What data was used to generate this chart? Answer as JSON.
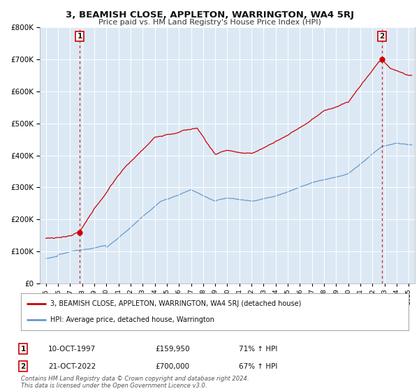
{
  "title": "3, BEAMISH CLOSE, APPLETON, WARRINGTON, WA4 5RJ",
  "subtitle": "Price paid vs. HM Land Registry's House Price Index (HPI)",
  "legend_line1": "3, BEAMISH CLOSE, APPLETON, WARRINGTON, WA4 5RJ (detached house)",
  "legend_line2": "HPI: Average price, detached house, Warrington",
  "annotation1_date": "10-OCT-1997",
  "annotation1_price": "£159,950",
  "annotation1_hpi": "71% ↑ HPI",
  "annotation2_date": "21-OCT-2022",
  "annotation2_price": "£700,000",
  "annotation2_hpi": "67% ↑ HPI",
  "footer": "Contains HM Land Registry data © Crown copyright and database right 2024.\nThis data is licensed under the Open Government Licence v3.0.",
  "plot_bg": "#dce9f5",
  "fig_bg": "#ffffff",
  "red_color": "#cc0000",
  "blue_color": "#6699cc",
  "grid_color": "#ffffff",
  "marker1_x": 1997.79,
  "marker1_y": 159950,
  "marker2_x": 2022.8,
  "marker2_y": 700000,
  "ylim": [
    0,
    800000
  ],
  "xlim_start": 1994.5,
  "xlim_end": 2025.5
}
